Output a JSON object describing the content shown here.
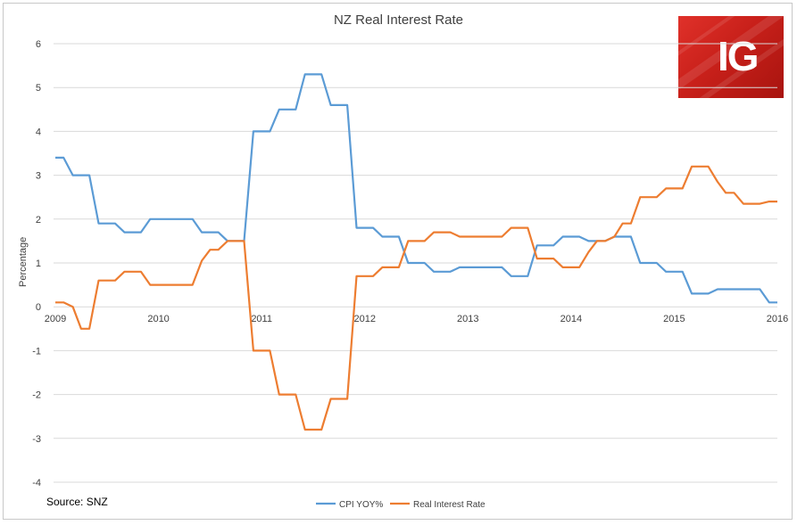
{
  "chart_data": {
    "type": "line",
    "title": "NZ Real Interest Rate",
    "ylabel": "Percentage",
    "xlabel": "",
    "ylim": [
      -4,
      6
    ],
    "yticks": [
      6,
      5,
      4,
      3,
      2,
      1,
      0,
      -1,
      -2,
      -3,
      -4
    ],
    "xlim": [
      2009,
      2016
    ],
    "xticks": [
      "2009",
      "2010",
      "2011",
      "2012",
      "2013",
      "2014",
      "2015",
      "2016"
    ],
    "grid": "horizontal",
    "legend_position": "bottom",
    "series": [
      {
        "name": "CPI YOY%",
        "color": "#5b9bd5",
        "points": [
          [
            2009.0,
            3.4
          ],
          [
            2009.08,
            3.4
          ],
          [
            2009.17,
            3.0
          ],
          [
            2009.25,
            3.0
          ],
          [
            2009.33,
            3.0
          ],
          [
            2009.42,
            1.9
          ],
          [
            2009.5,
            1.9
          ],
          [
            2009.58,
            1.9
          ],
          [
            2009.67,
            1.7
          ],
          [
            2009.75,
            1.7
          ],
          [
            2009.83,
            1.7
          ],
          [
            2009.92,
            2.0
          ],
          [
            2010.0,
            2.0
          ],
          [
            2010.08,
            2.0
          ],
          [
            2010.17,
            2.0
          ],
          [
            2010.25,
            2.0
          ],
          [
            2010.33,
            2.0
          ],
          [
            2010.42,
            1.7
          ],
          [
            2010.5,
            1.7
          ],
          [
            2010.58,
            1.7
          ],
          [
            2010.67,
            1.5
          ],
          [
            2010.75,
            1.5
          ],
          [
            2010.83,
            1.5
          ],
          [
            2010.92,
            4.0
          ],
          [
            2011.0,
            4.0
          ],
          [
            2011.08,
            4.0
          ],
          [
            2011.17,
            4.5
          ],
          [
            2011.25,
            4.5
          ],
          [
            2011.33,
            4.5
          ],
          [
            2011.42,
            5.3
          ],
          [
            2011.5,
            5.3
          ],
          [
            2011.58,
            5.3
          ],
          [
            2011.67,
            4.6
          ],
          [
            2011.75,
            4.6
          ],
          [
            2011.83,
            4.6
          ],
          [
            2011.92,
            1.8
          ],
          [
            2012.0,
            1.8
          ],
          [
            2012.08,
            1.8
          ],
          [
            2012.17,
            1.6
          ],
          [
            2012.25,
            1.6
          ],
          [
            2012.33,
            1.6
          ],
          [
            2012.42,
            1.0
          ],
          [
            2012.5,
            1.0
          ],
          [
            2012.58,
            1.0
          ],
          [
            2012.67,
            0.8
          ],
          [
            2012.75,
            0.8
          ],
          [
            2012.83,
            0.8
          ],
          [
            2012.92,
            0.9
          ],
          [
            2013.0,
            0.9
          ],
          [
            2013.08,
            0.9
          ],
          [
            2013.17,
            0.9
          ],
          [
            2013.25,
            0.9
          ],
          [
            2013.33,
            0.9
          ],
          [
            2013.42,
            0.7
          ],
          [
            2013.5,
            0.7
          ],
          [
            2013.58,
            0.7
          ],
          [
            2013.67,
            1.4
          ],
          [
            2013.75,
            1.4
          ],
          [
            2013.83,
            1.4
          ],
          [
            2013.92,
            1.6
          ],
          [
            2014.0,
            1.6
          ],
          [
            2014.08,
            1.6
          ],
          [
            2014.17,
            1.5
          ],
          [
            2014.25,
            1.5
          ],
          [
            2014.33,
            1.5
          ],
          [
            2014.42,
            1.6
          ],
          [
            2014.5,
            1.6
          ],
          [
            2014.58,
            1.6
          ],
          [
            2014.67,
            1.0
          ],
          [
            2014.75,
            1.0
          ],
          [
            2014.83,
            1.0
          ],
          [
            2014.92,
            0.8
          ],
          [
            2015.0,
            0.8
          ],
          [
            2015.08,
            0.8
          ],
          [
            2015.17,
            0.3
          ],
          [
            2015.25,
            0.3
          ],
          [
            2015.33,
            0.3
          ],
          [
            2015.42,
            0.4
          ],
          [
            2015.5,
            0.4
          ],
          [
            2015.58,
            0.4
          ],
          [
            2015.67,
            0.4
          ],
          [
            2015.75,
            0.4
          ],
          [
            2015.83,
            0.4
          ],
          [
            2015.92,
            0.1
          ],
          [
            2016.0,
            0.1
          ]
        ]
      },
      {
        "name": "Real Interest Rate",
        "color": "#ed7d31",
        "points": [
          [
            2009.0,
            0.1
          ],
          [
            2009.08,
            0.1
          ],
          [
            2009.17,
            0.0
          ],
          [
            2009.25,
            -0.5
          ],
          [
            2009.33,
            -0.5
          ],
          [
            2009.42,
            0.6
          ],
          [
            2009.5,
            0.6
          ],
          [
            2009.58,
            0.6
          ],
          [
            2009.67,
            0.8
          ],
          [
            2009.75,
            0.8
          ],
          [
            2009.83,
            0.8
          ],
          [
            2009.92,
            0.5
          ],
          [
            2010.0,
            0.5
          ],
          [
            2010.08,
            0.5
          ],
          [
            2010.17,
            0.5
          ],
          [
            2010.25,
            0.5
          ],
          [
            2010.33,
            0.5
          ],
          [
            2010.42,
            1.05
          ],
          [
            2010.5,
            1.3
          ],
          [
            2010.58,
            1.3
          ],
          [
            2010.67,
            1.5
          ],
          [
            2010.75,
            1.5
          ],
          [
            2010.83,
            1.5
          ],
          [
            2010.92,
            -1.0
          ],
          [
            2011.0,
            -1.0
          ],
          [
            2011.08,
            -1.0
          ],
          [
            2011.17,
            -2.0
          ],
          [
            2011.25,
            -2.0
          ],
          [
            2011.33,
            -2.0
          ],
          [
            2011.42,
            -2.8
          ],
          [
            2011.5,
            -2.8
          ],
          [
            2011.58,
            -2.8
          ],
          [
            2011.67,
            -2.1
          ],
          [
            2011.75,
            -2.1
          ],
          [
            2011.83,
            -2.1
          ],
          [
            2011.92,
            0.7
          ],
          [
            2012.0,
            0.7
          ],
          [
            2012.08,
            0.7
          ],
          [
            2012.17,
            0.9
          ],
          [
            2012.25,
            0.9
          ],
          [
            2012.33,
            0.9
          ],
          [
            2012.42,
            1.5
          ],
          [
            2012.5,
            1.5
          ],
          [
            2012.58,
            1.5
          ],
          [
            2012.67,
            1.7
          ],
          [
            2012.75,
            1.7
          ],
          [
            2012.83,
            1.7
          ],
          [
            2012.92,
            1.6
          ],
          [
            2013.0,
            1.6
          ],
          [
            2013.08,
            1.6
          ],
          [
            2013.17,
            1.6
          ],
          [
            2013.25,
            1.6
          ],
          [
            2013.33,
            1.6
          ],
          [
            2013.42,
            1.8
          ],
          [
            2013.5,
            1.8
          ],
          [
            2013.58,
            1.8
          ],
          [
            2013.67,
            1.1
          ],
          [
            2013.75,
            1.1
          ],
          [
            2013.83,
            1.1
          ],
          [
            2013.92,
            0.9
          ],
          [
            2014.0,
            0.9
          ],
          [
            2014.08,
            0.9
          ],
          [
            2014.17,
            1.25
          ],
          [
            2014.25,
            1.5
          ],
          [
            2014.33,
            1.5
          ],
          [
            2014.42,
            1.6
          ],
          [
            2014.5,
            1.9
          ],
          [
            2014.58,
            1.9
          ],
          [
            2014.67,
            2.5
          ],
          [
            2014.75,
            2.5
          ],
          [
            2014.83,
            2.5
          ],
          [
            2014.92,
            2.7
          ],
          [
            2015.0,
            2.7
          ],
          [
            2015.08,
            2.7
          ],
          [
            2015.17,
            3.2
          ],
          [
            2015.25,
            3.2
          ],
          [
            2015.33,
            3.2
          ],
          [
            2015.42,
            2.85
          ],
          [
            2015.5,
            2.6
          ],
          [
            2015.58,
            2.6
          ],
          [
            2015.67,
            2.35
          ],
          [
            2015.75,
            2.35
          ],
          [
            2015.83,
            2.35
          ],
          [
            2015.92,
            2.4
          ],
          [
            2016.0,
            2.4
          ]
        ]
      }
    ]
  },
  "source_note": "Source: SNZ",
  "logo": {
    "text": "IG",
    "background": "#d7261f"
  }
}
